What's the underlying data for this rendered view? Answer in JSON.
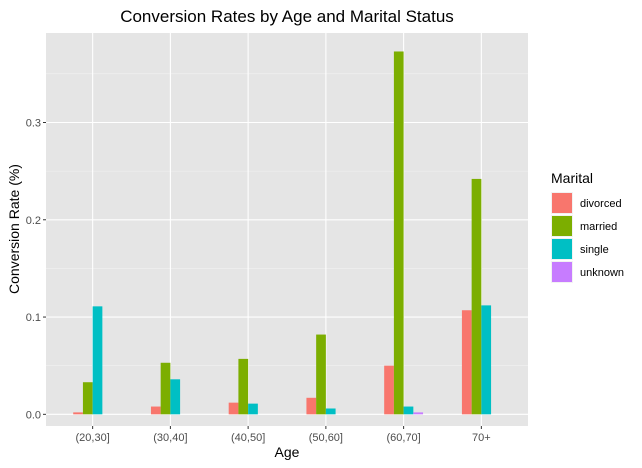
{
  "chart_data": {
    "type": "bar",
    "title": "Conversion Rates by Age and Marital Status",
    "xlabel": "Age",
    "ylabel": "Conversion Rate (%)",
    "categories": [
      "(20,30]",
      "(30,40]",
      "(40,50]",
      "(50,60]",
      "(60,70]",
      "70+"
    ],
    "ylim": [
      -0.012,
      0.392
    ],
    "yticks": [
      0.0,
      0.1,
      0.2,
      0.3
    ],
    "ytick_labels": [
      "0.0",
      "0.1",
      "0.2",
      "0.3"
    ],
    "legend": {
      "title": "Marital",
      "position": "right"
    },
    "grid": true,
    "series": [
      {
        "name": "divorced",
        "color": "#F8766D",
        "values": [
          0.002,
          0.008,
          0.012,
          0.017,
          0.05,
          0.107
        ]
      },
      {
        "name": "married",
        "color": "#7CAE00",
        "values": [
          0.033,
          0.053,
          0.057,
          0.082,
          0.373,
          0.242
        ]
      },
      {
        "name": "single",
        "color": "#00BFC4",
        "values": [
          0.111,
          0.036,
          0.011,
          0.006,
          0.008,
          0.112
        ]
      },
      {
        "name": "unknown",
        "color": "#C77CFF",
        "values": [
          0.0,
          0.0,
          0.0,
          0.0,
          0.002,
          0.0
        ]
      }
    ]
  },
  "colors": {
    "panel_background": "#E5E5E5",
    "grid_major": "#FFFFFF",
    "text": "#000000",
    "tick_text": "#4D4D4D"
  }
}
